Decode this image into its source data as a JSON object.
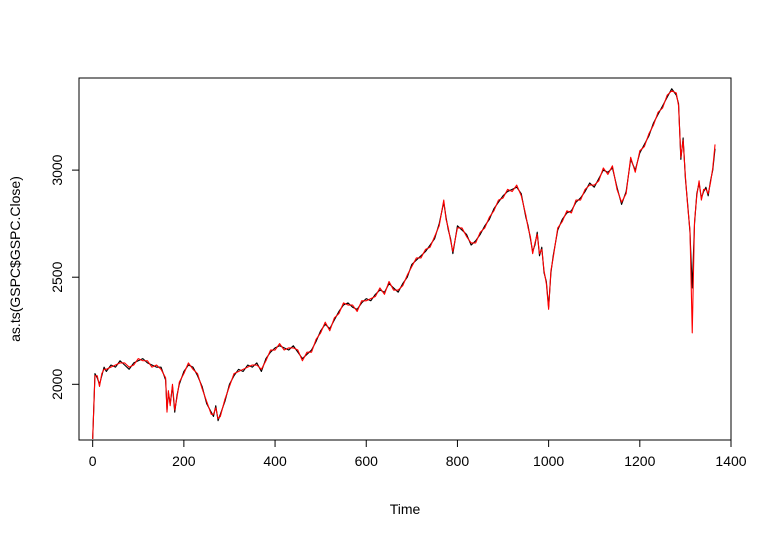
{
  "chart_data": {
    "type": "line",
    "title": "",
    "xlabel": "Time",
    "ylabel": "as.ts(GSPC$GSPC.Close)",
    "xlim": [
      -30,
      1400
    ],
    "ylim": [
      1740,
      3430
    ],
    "x_ticks": [
      0,
      200,
      400,
      600,
      800,
      1000,
      1200,
      1400
    ],
    "y_ticks": [
      2000,
      2500,
      3000
    ],
    "grid": false,
    "legend": "none",
    "series": [
      {
        "color": "#000000",
        "x": [
          0,
          5,
          10,
          15,
          20,
          25,
          30,
          40,
          50,
          60,
          70,
          80,
          90,
          100,
          110,
          120,
          130,
          140,
          150,
          160,
          163,
          166,
          170,
          175,
          180,
          185,
          190,
          200,
          210,
          220,
          230,
          240,
          250,
          260,
          265,
          270,
          275,
          280,
          290,
          300,
          310,
          320,
          330,
          340,
          350,
          360,
          370,
          380,
          390,
          400,
          410,
          420,
          430,
          440,
          450,
          460,
          470,
          480,
          490,
          500,
          510,
          520,
          530,
          540,
          550,
          560,
          570,
          580,
          590,
          600,
          610,
          620,
          630,
          640,
          650,
          660,
          670,
          680,
          690,
          700,
          710,
          720,
          730,
          740,
          750,
          760,
          770,
          775,
          780,
          785,
          790,
          800,
          810,
          820,
          830,
          840,
          850,
          860,
          870,
          880,
          890,
          900,
          910,
          920,
          930,
          940,
          950,
          955,
          960,
          965,
          970,
          975,
          980,
          985,
          990,
          995,
          1000,
          1005,
          1010,
          1020,
          1030,
          1040,
          1050,
          1060,
          1070,
          1080,
          1090,
          1100,
          1110,
          1120,
          1130,
          1140,
          1150,
          1160,
          1170,
          1180,
          1190,
          1200,
          1210,
          1220,
          1230,
          1240,
          1250,
          1260,
          1270,
          1280,
          1285,
          1290,
          1295,
          1300,
          1305,
          1310,
          1315,
          1320,
          1325,
          1330,
          1335,
          1340,
          1345,
          1350,
          1355,
          1360,
          1365
        ],
        "y": [
          1745,
          2050,
          2030,
          2000,
          2040,
          2080,
          2060,
          2090,
          2080,
          2110,
          2090,
          2070,
          2100,
          2110,
          2120,
          2100,
          2090,
          2080,
          2080,
          2020,
          1880,
          1960,
          1910,
          1990,
          1870,
          1950,
          2000,
          2060,
          2090,
          2080,
          2040,
          1990,
          1910,
          1870,
          1850,
          1900,
          1830,
          1860,
          1920,
          2000,
          2040,
          2070,
          2060,
          2090,
          2080,
          2100,
          2060,
          2120,
          2150,
          2170,
          2180,
          2170,
          2160,
          2180,
          2150,
          2120,
          2140,
          2160,
          2200,
          2250,
          2280,
          2260,
          2300,
          2340,
          2370,
          2380,
          2360,
          2350,
          2380,
          2400,
          2390,
          2420,
          2440,
          2430,
          2470,
          2450,
          2430,
          2470,
          2500,
          2560,
          2580,
          2600,
          2620,
          2650,
          2680,
          2750,
          2850,
          2780,
          2720,
          2680,
          2610,
          2740,
          2720,
          2700,
          2650,
          2670,
          2700,
          2740,
          2770,
          2820,
          2850,
          2880,
          2900,
          2910,
          2920,
          2890,
          2780,
          2740,
          2680,
          2620,
          2650,
          2710,
          2600,
          2640,
          2520,
          2480,
          2360,
          2520,
          2600,
          2720,
          2770,
          2800,
          2810,
          2850,
          2870,
          2900,
          2940,
          2920,
          2960,
          3000,
          2990,
          3010,
          2920,
          2840,
          2900,
          3050,
          3000,
          3080,
          3120,
          3160,
          3220,
          3260,
          3300,
          3340,
          3380,
          3350,
          3310,
          3050,
          3150,
          2960,
          2840,
          2710,
          2450,
          2750,
          2890,
          2940,
          2870,
          2900,
          2920,
          2880,
          2950,
          3000,
          3100
        ]
      },
      {
        "color": "#ff0000",
        "x": [
          0,
          5,
          10,
          15,
          20,
          25,
          30,
          40,
          50,
          60,
          70,
          80,
          90,
          100,
          110,
          120,
          130,
          140,
          150,
          160,
          163,
          166,
          170,
          175,
          180,
          185,
          190,
          200,
          210,
          220,
          230,
          240,
          250,
          260,
          265,
          270,
          275,
          280,
          290,
          300,
          310,
          320,
          330,
          340,
          350,
          360,
          370,
          380,
          390,
          400,
          410,
          420,
          430,
          440,
          450,
          460,
          470,
          480,
          490,
          500,
          510,
          520,
          530,
          540,
          550,
          560,
          570,
          580,
          590,
          600,
          610,
          620,
          630,
          640,
          650,
          660,
          670,
          680,
          690,
          700,
          710,
          720,
          730,
          740,
          750,
          760,
          770,
          775,
          780,
          785,
          790,
          800,
          810,
          820,
          830,
          840,
          850,
          860,
          870,
          880,
          890,
          900,
          910,
          920,
          930,
          940,
          950,
          955,
          960,
          965,
          970,
          975,
          980,
          985,
          990,
          995,
          1000,
          1005,
          1010,
          1020,
          1030,
          1040,
          1050,
          1060,
          1070,
          1080,
          1090,
          1100,
          1110,
          1120,
          1130,
          1140,
          1150,
          1160,
          1170,
          1180,
          1190,
          1200,
          1210,
          1220,
          1230,
          1240,
          1250,
          1260,
          1270,
          1280,
          1285,
          1290,
          1295,
          1300,
          1305,
          1310,
          1315,
          1320,
          1325,
          1330,
          1335,
          1340,
          1345,
          1350,
          1355,
          1360,
          1365
        ],
        "y": [
          1745,
          2040,
          2040,
          1990,
          2050,
          2070,
          2070,
          2080,
          2090,
          2100,
          2100,
          2080,
          2090,
          2120,
          2110,
          2110,
          2080,
          2090,
          2070,
          2030,
          1870,
          1970,
          1900,
          2000,
          1880,
          1940,
          2010,
          2050,
          2100,
          2070,
          2050,
          1980,
          1920,
          1860,
          1860,
          1890,
          1840,
          1850,
          1930,
          1990,
          2050,
          2060,
          2070,
          2080,
          2090,
          2090,
          2070,
          2110,
          2160,
          2160,
          2190,
          2160,
          2170,
          2170,
          2160,
          2110,
          2150,
          2150,
          2210,
          2240,
          2290,
          2250,
          2310,
          2330,
          2380,
          2370,
          2370,
          2340,
          2390,
          2390,
          2400,
          2410,
          2450,
          2420,
          2480,
          2440,
          2440,
          2460,
          2510,
          2550,
          2590,
          2590,
          2630,
          2640,
          2690,
          2740,
          2860,
          2770,
          2730,
          2670,
          2620,
          2730,
          2730,
          2690,
          2660,
          2660,
          2710,
          2730,
          2780,
          2810,
          2860,
          2870,
          2910,
          2900,
          2930,
          2880,
          2790,
          2730,
          2690,
          2610,
          2660,
          2700,
          2610,
          2630,
          2530,
          2470,
          2350,
          2530,
          2590,
          2730,
          2760,
          2810,
          2800,
          2860,
          2860,
          2910,
          2930,
          2930,
          2950,
          3010,
          2980,
          3020,
          2910,
          2850,
          2890,
          3060,
          2990,
          3090,
          3110,
          3170,
          3210,
          3270,
          3290,
          3350,
          3370,
          3360,
          3300,
          3060,
          3140,
          2970,
          2830,
          2720,
          2240,
          2760,
          2880,
          2950,
          2860,
          2910,
          2910,
          2890,
          2940,
          3010,
          3120
        ]
      }
    ]
  }
}
